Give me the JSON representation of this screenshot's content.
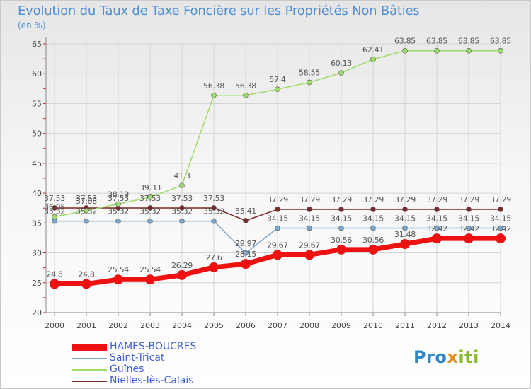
{
  "chart_data": {
    "type": "line",
    "title": "Evolution du Taux de Taxe Foncière sur les Propriétés Non Bâties",
    "ylabel": "(en %)",
    "xlabel": "",
    "ylim": [
      20,
      65
    ],
    "yticks": [
      20,
      25,
      30,
      35,
      40,
      45,
      50,
      55,
      60,
      65
    ],
    "grid": true,
    "categories": [
      "2000",
      "2001",
      "2002",
      "2003",
      "2004",
      "2005",
      "2006",
      "2007",
      "2008",
      "2009",
      "2010",
      "2011",
      "2012",
      "2013",
      "2014"
    ],
    "series": [
      {
        "name": "HAMES-BOUCRES",
        "color": "#ee1111",
        "width": 7,
        "marker": 7,
        "values": [
          24.8,
          24.8,
          25.54,
          25.54,
          26.29,
          27.6,
          28.15,
          29.67,
          29.67,
          30.56,
          30.56,
          31.48,
          32.42,
          32.42,
          32.42
        ],
        "labels": [
          "24.8",
          "24.8",
          "25.54",
          "25.54",
          "26.29",
          "27.6",
          "28.15",
          "29.67",
          "29.67",
          "30.56",
          "30.56",
          "31.48",
          "32.42",
          "32.42",
          "32.42"
        ]
      },
      {
        "name": "Saint-Tricat",
        "color": "#7aa5cc",
        "width": 1.5,
        "marker": 3.5,
        "values": [
          35.32,
          35.32,
          35.32,
          35.32,
          35.32,
          35.32,
          29.97,
          34.15,
          34.15,
          34.15,
          34.15,
          34.15,
          34.15,
          34.15,
          34.15
        ],
        "labels": [
          "35.32",
          "35.32",
          "35.32",
          "35.32",
          "35.32",
          "35.32",
          "29.97",
          "34.15",
          "34.15",
          "34.15",
          "34.15",
          "34.15",
          "34.15",
          "34.15",
          "34.15"
        ]
      },
      {
        "name": "Guînes",
        "color": "#9edc6a",
        "width": 1.5,
        "marker": 3.5,
        "values": [
          36.05,
          37.08,
          38.19,
          39.33,
          41.3,
          56.38,
          56.38,
          57.4,
          58.55,
          60.13,
          62.41,
          63.85,
          63.85,
          63.85,
          63.85
        ],
        "labels": [
          "36.05",
          "37.08",
          "38.19",
          "39.33",
          "41.3",
          "56.38",
          "56.38",
          "57.4",
          "58.55",
          "60.13",
          "62.41",
          "63.85",
          "63.85",
          "63.85",
          "63.85"
        ]
      },
      {
        "name": "Nielles-lès-Calais",
        "color": "#7a2a2a",
        "width": 1.5,
        "marker": 3.5,
        "values": [
          37.53,
          37.53,
          37.53,
          37.53,
          37.53,
          37.53,
          35.41,
          37.29,
          37.29,
          37.29,
          37.29,
          37.29,
          37.29,
          37.29,
          37.29
        ],
        "labels": [
          "37.53",
          "37.53",
          "37.53",
          "37.53",
          "37.53",
          "37.53",
          "35.41",
          "37.29",
          "37.29",
          "37.29",
          "37.29",
          "37.29",
          "37.29",
          "37.29",
          "37.29"
        ]
      }
    ]
  },
  "brand": {
    "part1": "Pro",
    "part2": "x",
    "part3": "iti"
  }
}
